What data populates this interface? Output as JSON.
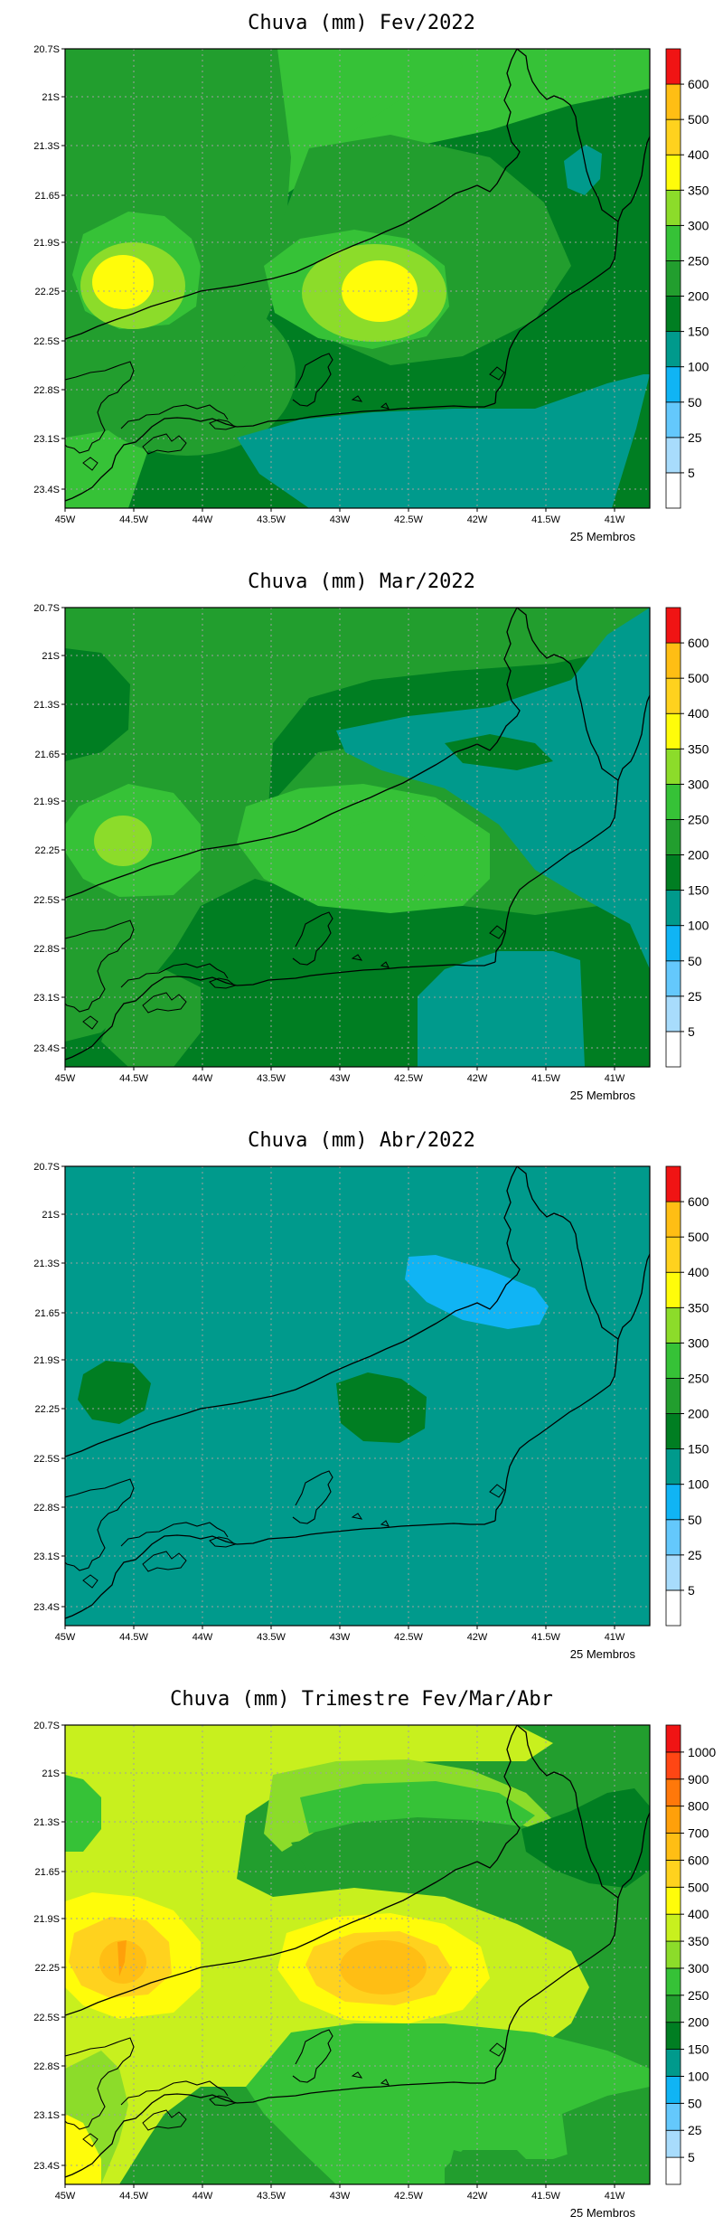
{
  "colors": {
    "none": "#ffffff",
    "c5": "#a8dcfc",
    "c25": "#64c8fc",
    "c50": "#10b4f4",
    "c100": "#009a8c",
    "c150": "#007e22",
    "c200": "#229e2e",
    "c250": "#36c237",
    "c300": "#8cdc2a",
    "c350": "#c8f01e",
    "c400": "#fffc0a",
    "c500": "#ffd21e",
    "c600": "#ffbe14",
    "c700": "#ffa00a",
    "c800": "#ff780a",
    "c900": "#ff4614",
    "c1000": "#f01e1e",
    "top": "#f01414"
  },
  "axes": {
    "x_ticks": [
      "45W",
      "44.5W",
      "44W",
      "43.5W",
      "43W",
      "42.5W",
      "42W",
      "41.5W",
      "41W"
    ],
    "y_ticks": [
      "20.7S",
      "21S",
      "21.3S",
      "21.65",
      "21.9S",
      "22.25",
      "22.5S",
      "22.8S",
      "23.1S",
      "23.4S"
    ]
  },
  "panels": [
    {
      "title": "Chuva (mm) Fev/2022",
      "footer": "25 Membros",
      "legend": [
        "5",
        "25",
        "50",
        "100",
        "150",
        "200",
        "250",
        "300",
        "350",
        "400",
        "500",
        "600"
      ]
    },
    {
      "title": "Chuva (mm) Mar/2022",
      "footer": "25 Membros",
      "legend": [
        "5",
        "25",
        "50",
        "100",
        "150",
        "200",
        "250",
        "300",
        "350",
        "400",
        "500",
        "600"
      ]
    },
    {
      "title": "Chuva (mm) Abr/2022",
      "footer": "25 Membros",
      "legend": [
        "5",
        "25",
        "50",
        "100",
        "150",
        "200",
        "250",
        "300",
        "350",
        "400",
        "500",
        "600"
      ]
    },
    {
      "title": "Chuva (mm) Trimestre Fev/Mar/Abr",
      "footer": "25 Membros",
      "legend": [
        "5",
        "25",
        "50",
        "100",
        "150",
        "200",
        "250",
        "300",
        "350",
        "400",
        "500",
        "600",
        "700",
        "800",
        "900",
        "1000"
      ]
    }
  ]
}
